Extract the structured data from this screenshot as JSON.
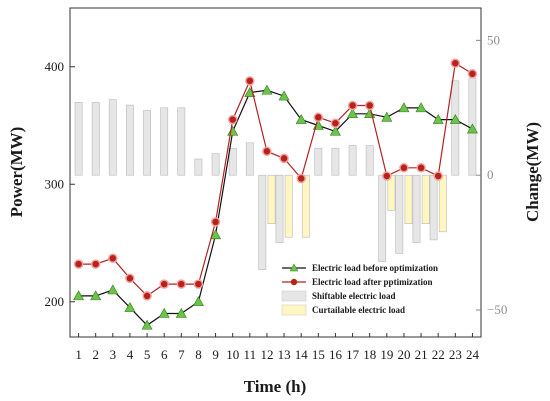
{
  "chart_data": {
    "type": "line",
    "x": [
      1,
      2,
      3,
      4,
      5,
      6,
      7,
      8,
      9,
      10,
      11,
      12,
      13,
      14,
      15,
      16,
      17,
      18,
      19,
      20,
      21,
      22,
      23,
      24
    ],
    "xlabel": "Time (h)",
    "ylabel_left": "Power(MW)",
    "ylabel_right": "Change(MW)",
    "ylim_left": [
      170,
      450
    ],
    "yticks_left": [
      200,
      300,
      400
    ],
    "ylim_right": [
      -60,
      62
    ],
    "yticks_right": [
      -50,
      0,
      50
    ],
    "grid": false,
    "legend_position": "lower-right",
    "series": [
      {
        "name": "Electric load before optimization",
        "axis": "left",
        "kind": "line",
        "color": "#006400",
        "marker": "triangle",
        "marker_color": "#6cc24a",
        "values": [
          205,
          205,
          210,
          195,
          180,
          190,
          190,
          200,
          257,
          345,
          378,
          380,
          375,
          355,
          350,
          345,
          360,
          360,
          357,
          365,
          365,
          355,
          355,
          347
        ]
      },
      {
        "name": "Electric load after pptimization",
        "axis": "left",
        "kind": "line",
        "color": "#b22222",
        "marker": "circle",
        "marker_color": "#b5231b",
        "values": [
          232,
          232,
          237,
          220,
          205,
          215,
          215,
          215,
          268,
          355,
          388,
          328,
          322,
          305,
          357,
          352,
          367,
          367,
          307,
          314,
          314,
          307,
          403,
          394
        ]
      },
      {
        "name": "Shiftable electric load",
        "axis": "right",
        "kind": "bar",
        "color": "#e6e6e6",
        "values": [
          27,
          27,
          28,
          26,
          24,
          25,
          25,
          6,
          8,
          10,
          12,
          -35,
          -25,
          0,
          10,
          10,
          11,
          11,
          -32,
          -29,
          -25,
          -24,
          35,
          36
        ]
      },
      {
        "name": "Curtailable electric load",
        "axis": "right",
        "kind": "bar",
        "color": "#fff6c2",
        "values": [
          0,
          0,
          0,
          0,
          0,
          0,
          0,
          0,
          0,
          0,
          0,
          -18,
          -23,
          -23,
          0,
          0,
          0,
          0,
          -13,
          -18,
          -18,
          -21,
          0,
          0
        ]
      }
    ]
  }
}
